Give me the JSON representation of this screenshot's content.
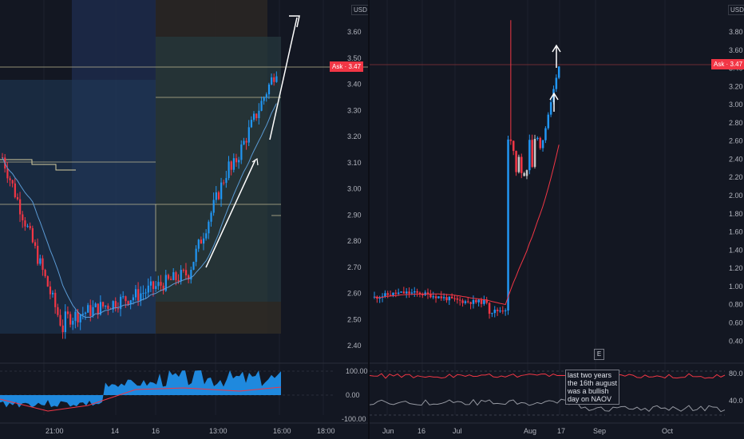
{
  "left_chart": {
    "currency": "USD",
    "ask_label": "Ask · 3.47",
    "price_ticks": [
      "3.60",
      "3.50",
      "3.40",
      "3.30",
      "3.20",
      "3.10",
      "3.00",
      "2.90",
      "2.80",
      "2.70",
      "2.60",
      "2.50",
      "2.40"
    ],
    "osc_ticks": [
      "100.00",
      "0.00",
      "-100.00"
    ],
    "time_ticks": [
      "21:00",
      "14",
      "16",
      "13:00",
      "16:00",
      "18:00"
    ]
  },
  "right_chart": {
    "currency": "USD",
    "ask_label": "Ask · 3.47",
    "price_ticks": [
      "3.80",
      "3.60",
      "3.40",
      "3.20",
      "3.00",
      "2.80",
      "2.60",
      "2.40",
      "2.20",
      "2.00",
      "1.80",
      "1.60",
      "1.40",
      "1.20",
      "1.00",
      "0.80",
      "0.60",
      "0.40"
    ],
    "osc_ticks": [
      "80.0",
      "40.0"
    ],
    "time_ticks": [
      "Jun",
      "16",
      "Jul",
      "Aug",
      "17",
      "Sep",
      "Oct"
    ],
    "event_badge": "E",
    "annotation": [
      "last two years",
      "the 16th august",
      "was a bullish",
      "day on NAOV"
    ]
  },
  "colors": {
    "up": "#2196f3",
    "down": "#f23645",
    "bg": "#131722",
    "grid": "#1e222d",
    "flat": "#c8c8c8"
  }
}
